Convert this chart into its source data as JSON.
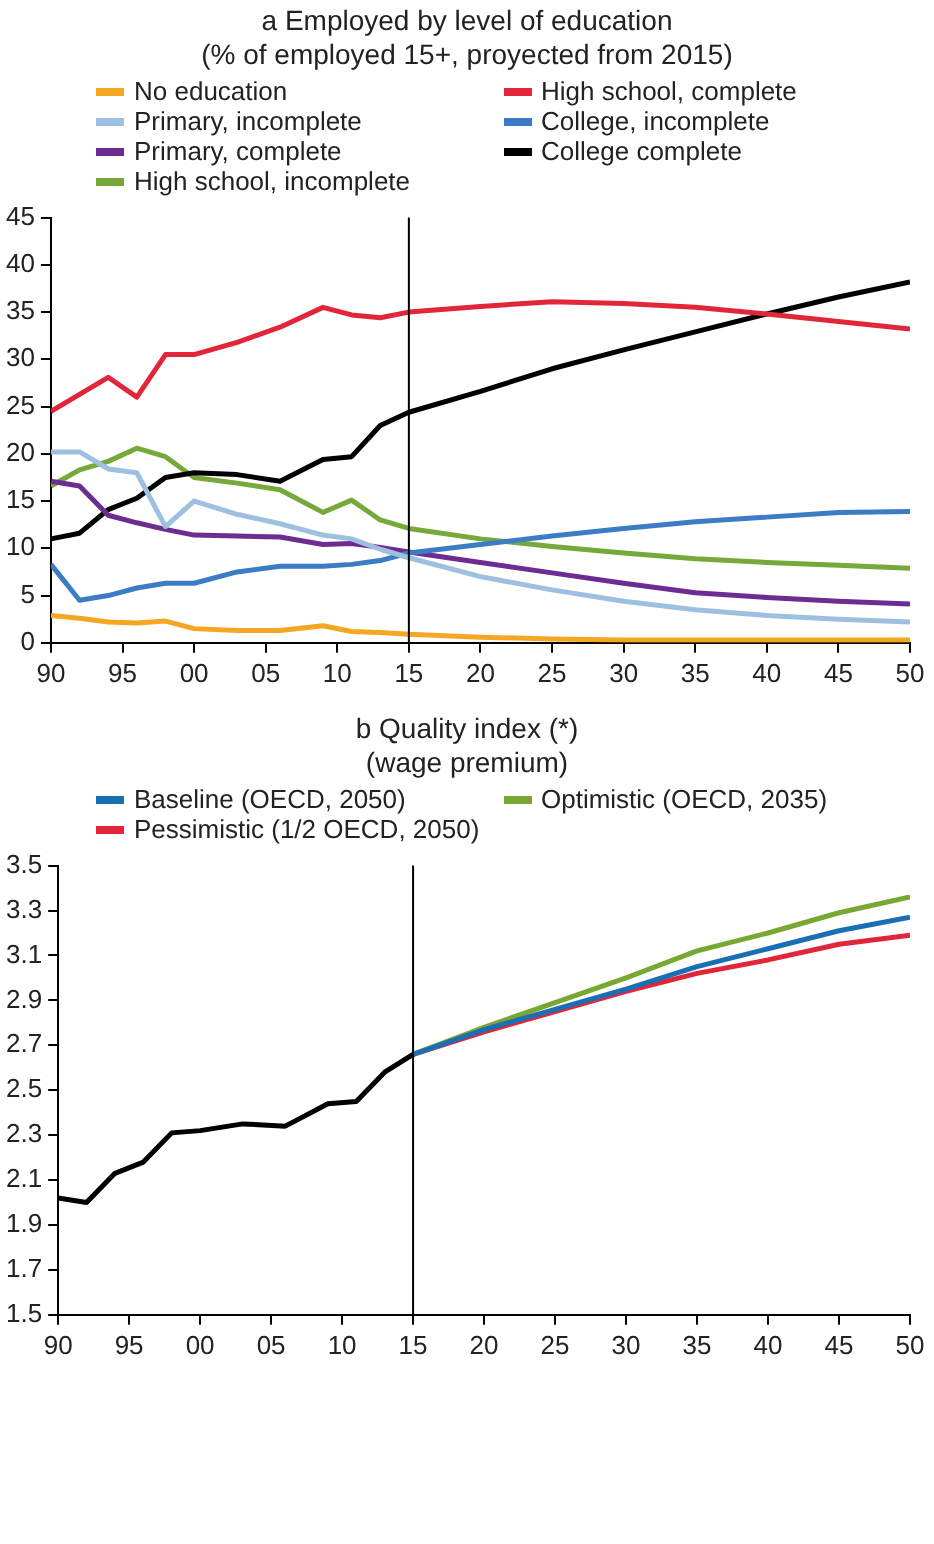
{
  "chart_data": [
    {
      "type": "line",
      "title": "a Employed by level of education",
      "subtitle": "(% of employed 15+, proyected from 2015)",
      "x": [
        1990,
        1992,
        1994,
        1996,
        1998,
        2000,
        2003,
        2006,
        2009,
        2011,
        2013,
        2015,
        2020,
        2025,
        2030,
        2035,
        2040,
        2045,
        2050
      ],
      "series": [
        {
          "name": "No education",
          "color": "#f5a623",
          "values": [
            2.9,
            2.6,
            2.2,
            2.1,
            2.3,
            1.5,
            1.3,
            1.3,
            1.8,
            1.2,
            1.1,
            0.9,
            0.6,
            0.4,
            0.3,
            0.3,
            0.3,
            0.3,
            0.3
          ]
        },
        {
          "name": "High school, complete",
          "color": "#e2263a",
          "values": [
            24.5,
            26.3,
            28.1,
            26.0,
            30.5,
            30.5,
            31.8,
            33.4,
            35.5,
            34.7,
            34.4,
            35.0,
            35.6,
            36.1,
            35.9,
            35.5,
            34.8,
            34.0,
            33.2
          ]
        },
        {
          "name": "Primary, incomplete",
          "color": "#9dbfe0",
          "values": [
            20.2,
            20.2,
            18.4,
            18.0,
            12.3,
            15.0,
            13.6,
            12.6,
            11.4,
            11.0,
            9.9,
            9.0,
            7.0,
            5.6,
            4.4,
            3.5,
            2.9,
            2.5,
            2.2
          ]
        },
        {
          "name": "College, incomplete",
          "color": "#3b7cc4",
          "values": [
            8.3,
            4.5,
            5.0,
            5.8,
            6.3,
            6.3,
            7.5,
            8.1,
            8.1,
            8.3,
            8.7,
            9.5,
            10.4,
            11.3,
            12.1,
            12.8,
            13.3,
            13.8,
            13.9
          ]
        },
        {
          "name": "Primary, complete",
          "color": "#6d2c91",
          "values": [
            17.1,
            16.6,
            13.5,
            12.7,
            12.0,
            11.4,
            11.3,
            11.2,
            10.4,
            10.5,
            10.1,
            9.6,
            8.5,
            7.4,
            6.3,
            5.3,
            4.8,
            4.4,
            4.1
          ]
        },
        {
          "name": "College complete",
          "color": "#000000",
          "values": [
            11.0,
            11.6,
            14.1,
            15.3,
            17.5,
            18.0,
            17.8,
            17.1,
            19.4,
            19.7,
            23.0,
            24.4,
            26.6,
            29.0,
            31.0,
            32.9,
            34.8,
            36.6,
            38.2
          ]
        },
        {
          "name": "High school, incomplete",
          "color": "#76a83a",
          "values": [
            16.6,
            18.3,
            19.2,
            20.6,
            19.7,
            17.5,
            16.9,
            16.2,
            13.8,
            15.1,
            13.0,
            12.1,
            11.0,
            10.2,
            9.5,
            8.9,
            8.5,
            8.2,
            7.9
          ]
        }
      ],
      "xlim": [
        1990,
        2050
      ],
      "xticks": [
        {
          "value": 1990,
          "label": "90"
        },
        {
          "value": 1995,
          "label": "95"
        },
        {
          "value": 2000,
          "label": "00"
        },
        {
          "value": 2005,
          "label": "05"
        },
        {
          "value": 2010,
          "label": "10"
        },
        {
          "value": 2015,
          "label": "15"
        },
        {
          "value": 2020,
          "label": "20"
        },
        {
          "value": 2025,
          "label": "25"
        },
        {
          "value": 2030,
          "label": "30"
        },
        {
          "value": 2035,
          "label": "35"
        },
        {
          "value": 2040,
          "label": "40"
        },
        {
          "value": 2045,
          "label": "45"
        },
        {
          "value": 2050,
          "label": "50"
        }
      ],
      "ylim": [
        0,
        45
      ],
      "yticks": [
        0,
        5,
        10,
        15,
        20,
        25,
        30,
        35,
        40,
        45
      ],
      "ref_lines": [
        {
          "axis": "x",
          "value": 2015,
          "color": "#000000"
        }
      ],
      "legend": "top",
      "marker": "none",
      "line_style": "solid"
    },
    {
      "type": "line",
      "title": "b Quality index (*)",
      "subtitle": "(wage premium)",
      "series": [
        {
          "color": "#000000",
          "x": [
            1990,
            1992,
            1994,
            1996,
            1998,
            2000,
            2003,
            2006,
            2009,
            2011,
            2013,
            2015
          ],
          "values": [
            2.02,
            2.0,
            2.13,
            2.18,
            2.31,
            2.32,
            2.35,
            2.34,
            2.44,
            2.45,
            2.58,
            2.66
          ]
        },
        {
          "name": "Baseline (OECD, 2050)",
          "color": "#1a6fb4",
          "x": [
            2015,
            2020,
            2025,
            2030,
            2035,
            2040,
            2045,
            2050
          ],
          "values": [
            2.66,
            2.77,
            2.86,
            2.95,
            3.05,
            3.13,
            3.21,
            3.27
          ]
        },
        {
          "name": "Optimistic (OECD, 2035)",
          "color": "#78a832",
          "x": [
            2015,
            2020,
            2025,
            2030,
            2035,
            2040,
            2045,
            2050
          ],
          "values": [
            2.66,
            2.78,
            2.89,
            3.0,
            3.12,
            3.2,
            3.29,
            3.36
          ]
        },
        {
          "name": "Pessimistic (1/2 OECD, 2050)",
          "color": "#e2263a",
          "x": [
            2015,
            2020,
            2025,
            2030,
            2035,
            2040,
            2045,
            2050
          ],
          "values": [
            2.66,
            2.76,
            2.85,
            2.94,
            3.02,
            3.08,
            3.15,
            3.19
          ]
        }
      ],
      "xlim": [
        1990,
        2050
      ],
      "xticks": [
        {
          "value": 1990,
          "label": "90"
        },
        {
          "value": 1995,
          "label": "95"
        },
        {
          "value": 2000,
          "label": "00"
        },
        {
          "value": 2005,
          "label": "05"
        },
        {
          "value": 2010,
          "label": "10"
        },
        {
          "value": 2015,
          "label": "15"
        },
        {
          "value": 2020,
          "label": "20"
        },
        {
          "value": 2025,
          "label": "25"
        },
        {
          "value": 2030,
          "label": "30"
        },
        {
          "value": 2035,
          "label": "35"
        },
        {
          "value": 2040,
          "label": "40"
        },
        {
          "value": 2045,
          "label": "45"
        },
        {
          "value": 2050,
          "label": "50"
        }
      ],
      "ylim": [
        1.5,
        3.5
      ],
      "yticks": [
        1.5,
        1.7,
        1.9,
        2.1,
        2.3,
        2.5,
        2.7,
        2.9,
        3.1,
        3.3,
        3.5
      ],
      "ref_lines": [
        {
          "axis": "x",
          "value": 2015,
          "color": "#000000"
        }
      ],
      "legend": "top",
      "marker": "none",
      "line_style": "solid"
    }
  ]
}
